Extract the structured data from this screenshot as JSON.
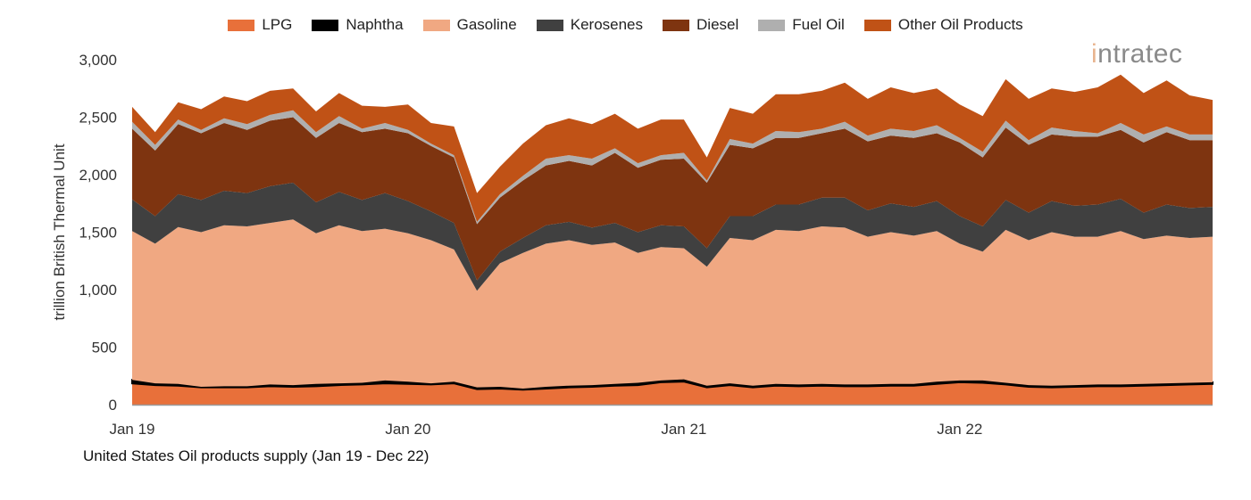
{
  "chart_data": {
    "type": "area",
    "stacked": true,
    "title": "United States Oil products supply (Jan 19 - Dec 22)",
    "xlabel": "",
    "ylabel": "trillion British Thermal Unit",
    "ylim": [
      0,
      3000
    ],
    "yticks": [
      0,
      500,
      1000,
      1500,
      2000,
      2500,
      3000
    ],
    "ytick_labels": [
      "0",
      "500",
      "1,000",
      "1,500",
      "2,000",
      "2,500",
      "3,000"
    ],
    "xtick_labels": [
      "Jan 19",
      "Jan 20",
      "Jan 21",
      "Jan 22"
    ],
    "xtick_categories": [
      "Jan 19",
      "Jan 20",
      "Jan 21",
      "Jan 22"
    ],
    "grid": false,
    "legend_placement": "top",
    "watermark": "intratec",
    "categories": [
      "Jan 19",
      "Feb 19",
      "Mar 19",
      "Apr 19",
      "May 19",
      "Jun 19",
      "Jul 19",
      "Aug 19",
      "Sep 19",
      "Oct 19",
      "Nov 19",
      "Dec 19",
      "Jan 20",
      "Feb 20",
      "Mar 20",
      "Apr 20",
      "May 20",
      "Jun 20",
      "Jul 20",
      "Aug 20",
      "Sep 20",
      "Oct 20",
      "Nov 20",
      "Dec 20",
      "Jan 21",
      "Feb 21",
      "Mar 21",
      "Apr 21",
      "May 21",
      "Jun 21",
      "Jul 21",
      "Aug 21",
      "Sep 21",
      "Oct 21",
      "Nov 21",
      "Dec 21",
      "Jan 22",
      "Feb 22",
      "Mar 22",
      "Apr 22",
      "May 22",
      "Jun 22",
      "Jul 22",
      "Aug 22",
      "Sep 22",
      "Oct 22",
      "Nov 22",
      "Dec 22"
    ],
    "series": [
      {
        "name": "LPG",
        "color": "#E8703A",
        "values": [
          185,
          170,
          165,
          150,
          150,
          150,
          160,
          155,
          160,
          170,
          175,
          185,
          180,
          175,
          185,
          135,
          140,
          130,
          140,
          150,
          155,
          165,
          170,
          195,
          200,
          150,
          170,
          150,
          165,
          160,
          165,
          160,
          160,
          165,
          165,
          180,
          195,
          190,
          175,
          155,
          150,
          155,
          160,
          160,
          165,
          170,
          175,
          180
        ]
      },
      {
        "name": "Naphtha",
        "color": "#000000",
        "values": [
          30,
          15,
          15,
          5,
          10,
          10,
          15,
          15,
          20,
          15,
          15,
          25,
          20,
          10,
          15,
          15,
          15,
          10,
          15,
          15,
          15,
          15,
          20,
          15,
          20,
          15,
          15,
          15,
          15,
          15,
          15,
          15,
          15,
          15,
          15,
          20,
          15,
          20,
          15,
          15,
          15,
          15,
          15,
          15,
          15,
          15,
          15,
          15
        ]
      },
      {
        "name": "Gasoline",
        "color": "#F0A882",
        "values": [
          1295,
          1215,
          1365,
          1345,
          1400,
          1390,
          1405,
          1440,
          1310,
          1375,
          1320,
          1320,
          1290,
          1245,
          1150,
          840,
          1075,
          1180,
          1245,
          1265,
          1220,
          1230,
          1130,
          1160,
          1140,
          1035,
          1265,
          1265,
          1340,
          1335,
          1370,
          1365,
          1285,
          1320,
          1290,
          1310,
          1190,
          1120,
          1330,
          1260,
          1335,
          1290,
          1285,
          1335,
          1260,
          1285,
          1260,
          1265
        ]
      },
      {
        "name": "Kerosenes",
        "color": "#404040",
        "values": [
          275,
          240,
          285,
          280,
          300,
          290,
          320,
          320,
          270,
          290,
          270,
          310,
          280,
          250,
          230,
          90,
          100,
          130,
          160,
          160,
          150,
          170,
          180,
          190,
          190,
          160,
          190,
          210,
          220,
          230,
          250,
          260,
          230,
          250,
          250,
          260,
          240,
          220,
          260,
          240,
          270,
          270,
          280,
          280,
          230,
          270,
          260,
          260
        ]
      },
      {
        "name": "Diesel",
        "color": "#7E3410",
        "values": [
          615,
          570,
          610,
          580,
          590,
          550,
          570,
          570,
          560,
          600,
          590,
          560,
          590,
          570,
          570,
          490,
          470,
          500,
          520,
          530,
          540,
          610,
          560,
          570,
          590,
          570,
          620,
          590,
          580,
          580,
          560,
          600,
          600,
          590,
          600,
          590,
          640,
          600,
          630,
          590,
          580,
          600,
          590,
          600,
          610,
          630,
          590,
          580
        ]
      },
      {
        "name": "Fuel Oil",
        "color": "#AFAFAF",
        "values": [
          60,
          50,
          40,
          30,
          40,
          50,
          50,
          60,
          50,
          60,
          30,
          50,
          30,
          20,
          20,
          20,
          30,
          40,
          60,
          50,
          60,
          40,
          40,
          40,
          50,
          20,
          50,
          40,
          60,
          50,
          40,
          60,
          50,
          60,
          60,
          70,
          40,
          50,
          60,
          40,
          60,
          50,
          30,
          60,
          70,
          50,
          50,
          50
        ]
      },
      {
        "name": "Other Oil Products",
        "color": "#C05216",
        "values": [
          130,
          110,
          150,
          180,
          190,
          200,
          210,
          190,
          180,
          200,
          200,
          140,
          220,
          180,
          250,
          250,
          240,
          280,
          290,
          320,
          300,
          300,
          300,
          310,
          290,
          200,
          270,
          260,
          320,
          330,
          330,
          340,
          320,
          360,
          330,
          320,
          290,
          310,
          360,
          360,
          340,
          340,
          400,
          420,
          360,
          400,
          340,
          300
        ]
      }
    ]
  }
}
